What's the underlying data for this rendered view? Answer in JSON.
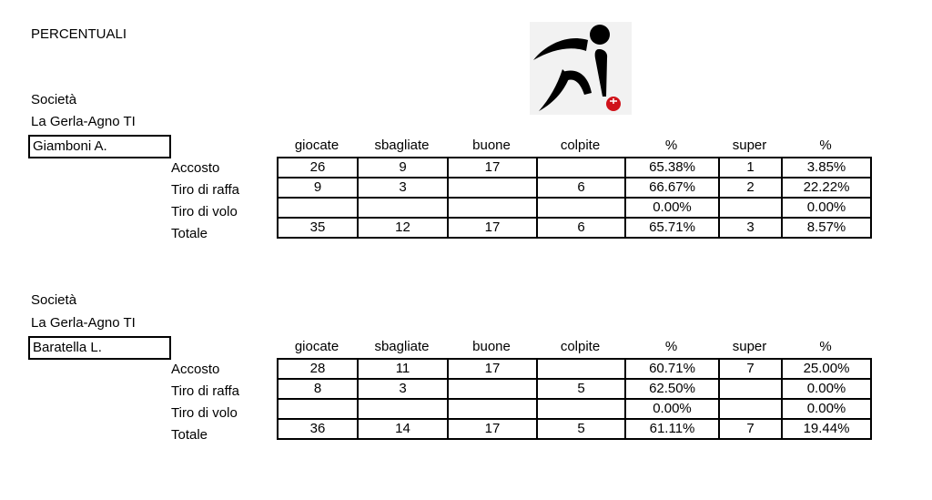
{
  "title": "PERCENTUALI",
  "logo": {
    "icon": "bocce-player-logo",
    "ball_color": "#d0121a"
  },
  "columns": [
    "giocate",
    "sbagliate",
    "buone",
    "colpite",
    "%",
    "super",
    "%"
  ],
  "row_labels": [
    "Accosto",
    "Tiro di raffa",
    "Tiro di volo",
    "Totale"
  ],
  "sections": [
    {
      "societa_label": "Società",
      "club": "La Gerla-Agno TI",
      "player": "Giamboni A.",
      "rows": [
        [
          "26",
          "9",
          "17",
          "",
          "65.38%",
          "1",
          "3.85%"
        ],
        [
          "9",
          "3",
          "",
          "6",
          "66.67%",
          "2",
          "22.22%"
        ],
        [
          "",
          "",
          "",
          "",
          "0.00%",
          "",
          "0.00%"
        ],
        [
          "35",
          "12",
          "17",
          "6",
          "65.71%",
          "3",
          "8.57%"
        ]
      ]
    },
    {
      "societa_label": "Società",
      "club": "La Gerla-Agno TI",
      "player": "Baratella L.",
      "rows": [
        [
          "28",
          "11",
          "17",
          "",
          "60.71%",
          "7",
          "25.00%"
        ],
        [
          "8",
          "3",
          "",
          "5",
          "62.50%",
          "",
          "0.00%"
        ],
        [
          "",
          "",
          "",
          "",
          "0.00%",
          "",
          "0.00%"
        ],
        [
          "36",
          "14",
          "17",
          "5",
          "61.11%",
          "7",
          "19.44%"
        ]
      ]
    }
  ]
}
